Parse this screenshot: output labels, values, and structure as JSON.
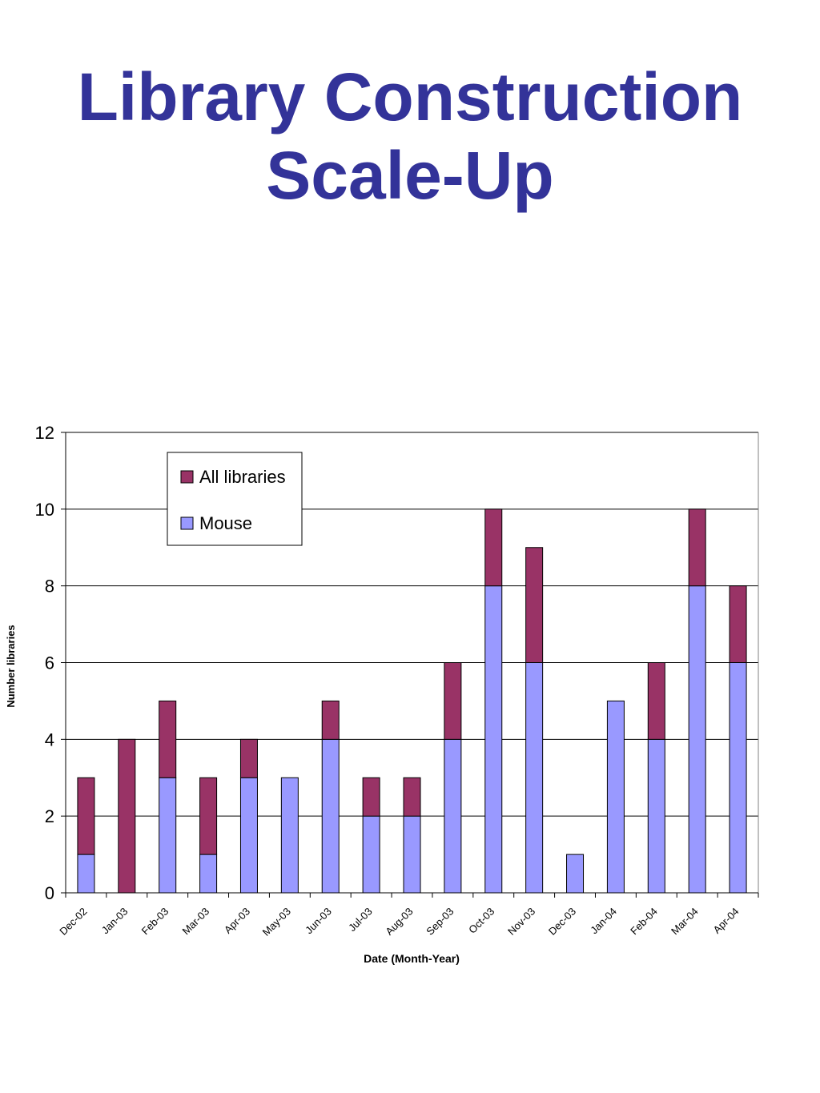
{
  "slide": {
    "title_line1": "Library Construction",
    "title_line2": "Scale-Up"
  },
  "chart_data": {
    "type": "bar",
    "stacked": true,
    "title": "",
    "xlabel": "Date (Month-Year)",
    "ylabel": "Number libraries",
    "ylim": [
      0,
      12
    ],
    "yticks": [
      0,
      2,
      4,
      6,
      8,
      10,
      12
    ],
    "grid": true,
    "legend_position": "top-left",
    "categories": [
      "Dec-02",
      "Jan-03",
      "Feb-03",
      "Mar-03",
      "Apr-03",
      "May-03",
      "Jun-03",
      "Jul-03",
      "Aug-03",
      "Sep-03",
      "Oct-03",
      "Nov-03",
      "Dec-03",
      "Jan-04",
      "Feb-04",
      "Mar-04",
      "Apr-04"
    ],
    "series": [
      {
        "name": "Mouse",
        "color": "#9999FF",
        "values": [
          1,
          0,
          3,
          1,
          3,
          3,
          4,
          2,
          2,
          4,
          8,
          6,
          1,
          5,
          4,
          8,
          6
        ]
      },
      {
        "name": "All libraries",
        "color": "#993366",
        "values": [
          2,
          4,
          2,
          2,
          1,
          0,
          1,
          1,
          1,
          2,
          2,
          3,
          0,
          0,
          2,
          2,
          2
        ]
      }
    ],
    "legend_order": [
      "All libraries",
      "Mouse"
    ]
  }
}
